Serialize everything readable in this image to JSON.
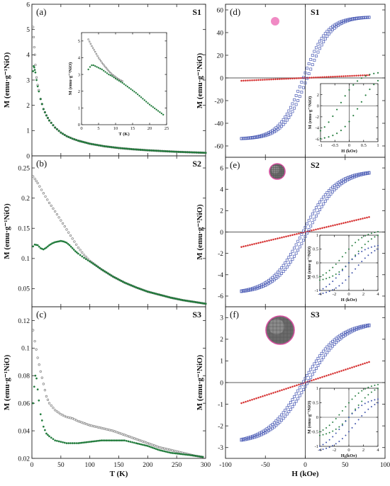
{
  "colors": {
    "fc": "#7f7f7f",
    "zfc": "#1f7a3a",
    "para": "#d42a2a",
    "loop": "#4a5bb5",
    "inset_loop_a": "#1f7a3a",
    "inset_loop_b": "#3b4fa8"
  },
  "chart_data": [
    {
      "id": "a",
      "type": "scatter",
      "panel_label": "(a)",
      "sample": "S1",
      "xlabel": "",
      "ylabel": "M (emu·g⁻¹NiO)",
      "xlim": [
        0,
        300
      ],
      "ylim": [
        0,
        6
      ],
      "yticks": [
        0,
        1,
        2,
        3,
        4,
        5,
        6
      ],
      "series": [
        {
          "role": "fc",
          "x": [
            2,
            3,
            4,
            5,
            6,
            8,
            10,
            12,
            15,
            20,
            25,
            30,
            40,
            50,
            60,
            70,
            80,
            100,
            125,
            150,
            175,
            200,
            225,
            250,
            275,
            300
          ],
          "y": [
            5.1,
            4.7,
            4.3,
            4.0,
            3.6,
            3.1,
            2.8,
            2.6,
            2.25,
            1.85,
            1.6,
            1.4,
            1.12,
            0.92,
            0.78,
            0.68,
            0.6,
            0.48,
            0.38,
            0.31,
            0.26,
            0.22,
            0.19,
            0.16,
            0.14,
            0.12
          ]
        },
        {
          "role": "zfc",
          "x": [
            2,
            3,
            4,
            5,
            6,
            8,
            10,
            12,
            15,
            20,
            25,
            30,
            40,
            50,
            60,
            70,
            80,
            100,
            125,
            150,
            175,
            200,
            225,
            250,
            275,
            300
          ],
          "y": [
            3.35,
            3.55,
            3.5,
            3.4,
            3.3,
            3.0,
            2.75,
            2.55,
            2.25,
            1.85,
            1.6,
            1.4,
            1.12,
            0.92,
            0.78,
            0.68,
            0.6,
            0.48,
            0.38,
            0.31,
            0.26,
            0.22,
            0.19,
            0.16,
            0.14,
            0.12
          ]
        }
      ],
      "inset": {
        "xlabel": "T (K)",
        "ylabel": "M (emu·g⁻¹NiO)",
        "xlim": [
          0,
          25
        ],
        "ylim": [
          0,
          5.5
        ],
        "xticks": [
          0,
          5,
          10,
          15,
          20,
          25
        ],
        "yticks": [
          0,
          1,
          2,
          3,
          4,
          5
        ],
        "series": [
          {
            "role": "fc",
            "x": [
              2,
              3,
              4,
              5,
              6,
              7,
              8,
              9,
              10,
              11,
              12
            ],
            "y": [
              5.1,
              4.7,
              4.35,
              4.0,
              3.7,
              3.45,
              3.2,
              3.0,
              2.85,
              2.7,
              2.6
            ]
          },
          {
            "role": "zfc",
            "x": [
              2,
              2.5,
              3,
              3.5,
              4,
              5,
              6,
              7,
              8,
              9,
              10,
              12,
              14,
              16,
              18,
              20,
              22,
              24
            ],
            "y": [
              3.3,
              3.45,
              3.55,
              3.55,
              3.5,
              3.4,
              3.3,
              3.15,
              3.0,
              2.9,
              2.75,
              2.5,
              2.2,
              1.9,
              1.55,
              1.2,
              0.9,
              0.6
            ]
          }
        ]
      }
    },
    {
      "id": "b",
      "type": "scatter",
      "panel_label": "(b)",
      "sample": "S2",
      "xlabel": "",
      "ylabel": "M (emu·g⁻¹NiO)",
      "xlim": [
        0,
        300
      ],
      "ylim": [
        0.02,
        0.27
      ],
      "yticks": [
        0.05,
        0.1,
        0.15,
        0.2,
        0.25
      ],
      "ytick_labels": [
        "0.05",
        "0.1",
        "0.15",
        "0.2",
        "0.25"
      ],
      "series": [
        {
          "role": "fc",
          "x": [
            2,
            5,
            10,
            20,
            30,
            40,
            50,
            60,
            70,
            80,
            90,
            100,
            120,
            140,
            160,
            180,
            200,
            220,
            240,
            260,
            280,
            300
          ],
          "y": [
            0.236,
            0.232,
            0.225,
            0.208,
            0.192,
            0.178,
            0.163,
            0.148,
            0.133,
            0.118,
            0.106,
            0.096,
            0.082,
            0.07,
            0.06,
            0.052,
            0.045,
            0.04,
            0.035,
            0.031,
            0.028,
            0.025
          ]
        },
        {
          "role": "zfc",
          "x": [
            2,
            5,
            10,
            15,
            20,
            25,
            30,
            35,
            40,
            45,
            50,
            55,
            60,
            65,
            70,
            75,
            80,
            90,
            100,
            120,
            140,
            160,
            180,
            200,
            220,
            240,
            260,
            280,
            300
          ],
          "y": [
            0.12,
            0.123,
            0.122,
            0.117,
            0.115,
            0.118,
            0.122,
            0.125,
            0.127,
            0.128,
            0.129,
            0.128,
            0.126,
            0.122,
            0.117,
            0.112,
            0.108,
            0.101,
            0.095,
            0.082,
            0.07,
            0.06,
            0.052,
            0.045,
            0.04,
            0.035,
            0.031,
            0.028,
            0.025
          ]
        }
      ]
    },
    {
      "id": "c",
      "type": "scatter",
      "panel_label": "(c)",
      "sample": "S3",
      "xlabel": "T (K)",
      "ylabel": "M (emu·g⁻¹NiO)",
      "xlim": [
        0,
        300
      ],
      "ylim": [
        0.02,
        0.13
      ],
      "xticks": [
        0,
        50,
        100,
        150,
        200,
        250,
        300
      ],
      "yticks": [
        0.02,
        0.04,
        0.06,
        0.08,
        0.1,
        0.12
      ],
      "ytick_labels": [
        "0.02",
        "0.04",
        "0.06",
        "0.08",
        "0.1",
        "0.12"
      ],
      "series": [
        {
          "role": "fc",
          "x": [
            2,
            5,
            10,
            15,
            20,
            25,
            30,
            40,
            50,
            60,
            70,
            80,
            100,
            120,
            140,
            160,
            180,
            200,
            220,
            240,
            260,
            280,
            295
          ],
          "y": [
            0.113,
            0.105,
            0.093,
            0.083,
            0.074,
            0.065,
            0.06,
            0.055,
            0.052,
            0.05,
            0.049,
            0.047,
            0.044,
            0.042,
            0.04,
            0.037,
            0.034,
            0.031,
            0.028,
            0.026,
            0.024,
            0.022,
            0.021
          ]
        },
        {
          "role": "zfc",
          "x": [
            2,
            4,
            6,
            8,
            10,
            12,
            15,
            20,
            25,
            30,
            40,
            50,
            60,
            70,
            80,
            100,
            120,
            140,
            160,
            170,
            180,
            200,
            220,
            240,
            260,
            280,
            295
          ],
          "y": [
            0.06,
            0.072,
            0.08,
            0.078,
            0.07,
            0.062,
            0.052,
            0.043,
            0.038,
            0.036,
            0.033,
            0.032,
            0.031,
            0.031,
            0.031,
            0.032,
            0.033,
            0.033,
            0.033,
            0.032,
            0.031,
            0.029,
            0.026,
            0.024,
            0.023,
            0.022,
            0.021
          ]
        }
      ]
    },
    {
      "id": "d",
      "type": "scatter",
      "panel_label": "(d)",
      "sample": "S1",
      "xlabel": "",
      "ylabel": "M (emu·g⁻¹NiO)",
      "xlim": [
        -100,
        100
      ],
      "ylim": [
        -70,
        65
      ],
      "yticks": [
        -60,
        -40,
        -20,
        0,
        20,
        40,
        60
      ],
      "loop": {
        "Hmax": 80,
        "Ms": 54,
        "H0": 30,
        "Hc": 2.5
      },
      "para": {
        "H": [
          -80,
          80
        ],
        "M": [
          -2.5,
          2.5
        ]
      },
      "particle": {
        "kind": "solid",
        "color": "#f08ac4"
      },
      "inset": {
        "xlabel": "H (kOe)",
        "ylabel": "M (emu·g⁻¹NiO)",
        "xlim": [
          -1,
          1
        ],
        "ylim": [
          -6.5,
          4
        ],
        "xticks": [
          -1,
          -0.5,
          0,
          0.5,
          1
        ],
        "xtick_labels": [
          "-1",
          "-0.5",
          "0",
          "0.5",
          "1"
        ],
        "yticks": [
          -6,
          -4,
          -2,
          0,
          2
        ],
        "loop": {
          "Hmax": 1,
          "Ms": 6.2,
          "H0": 0.7,
          "Hc": 0.35
        }
      }
    },
    {
      "id": "e",
      "type": "scatter",
      "panel_label": "(e)",
      "sample": "S2",
      "xlabel": "",
      "ylabel": "M (emu·g⁻¹NiO)",
      "xlim": [
        -100,
        100
      ],
      "ylim": [
        -7,
        7
      ],
      "yticks": [
        -6,
        -4,
        -2,
        0,
        2,
        4,
        6
      ],
      "loop": {
        "Hmax": 80,
        "Ms": 5.75,
        "H0": 40,
        "Hc": 3
      },
      "para": {
        "H": [
          -80,
          80
        ],
        "M": [
          -1.4,
          1.4
        ]
      },
      "particle": {
        "kind": "core-shell-small",
        "color": "#d64fa0"
      },
      "inset": {
        "xlabel": "H (kOe)",
        "ylabel": "M (emu·g⁻¹NiO)",
        "xlim": [
          -4,
          4
        ],
        "ylim": [
          -1,
          1
        ],
        "xticks": [
          -4,
          -2,
          0,
          2,
          4
        ],
        "yticks": [
          -1,
          -0.5,
          0,
          0.5,
          1
        ],
        "ytick_labels": [
          "-1",
          "-0.5",
          "0",
          "0.5",
          "1"
        ],
        "loops": [
          {
            "role": "a",
            "Hmax": 4,
            "Ms": 0.95,
            "H0": 3,
            "Hc": 0.8,
            "shift": 0.25
          },
          {
            "role": "b",
            "Hmax": 4,
            "Ms": 0.95,
            "H0": 3,
            "Hc": 0.8,
            "shift": -0.25
          }
        ]
      }
    },
    {
      "id": "f",
      "type": "scatter",
      "panel_label": "(f)",
      "sample": "S3",
      "xlabel": "H (kOe)",
      "ylabel": "M (emu·g⁻¹NiO)",
      "xlim": [
        -100,
        100
      ],
      "ylim": [
        -3.5,
        3.5
      ],
      "xticks": [
        -100,
        -50,
        0,
        50,
        100
      ],
      "yticks": [
        -3,
        -2,
        -1,
        0,
        1,
        2,
        3
      ],
      "loop": {
        "Hmax": 80,
        "Ms": 2.8,
        "H0": 45,
        "Hc": 3
      },
      "para": {
        "H": [
          -80,
          80
        ],
        "M": [
          -0.95,
          0.95
        ]
      },
      "particle": {
        "kind": "core-shell-large",
        "color": "#d64fa0"
      },
      "inset": {
        "xlabel": "H (kOe)",
        "ylabel": "M (emu·g⁻¹NiO)",
        "xlim": [
          -4,
          4
        ],
        "ylim": [
          -1,
          1
        ],
        "xticks": [
          -4,
          -2,
          0,
          2,
          4
        ],
        "yticks": [
          -1,
          -0.5,
          0,
          0.5,
          1
        ],
        "ytick_labels": [
          "-1",
          "-0.5",
          "0",
          "0.5",
          "1"
        ],
        "loops": [
          {
            "role": "a",
            "Hmax": 4,
            "Ms": 0.95,
            "H0": 3,
            "Hc": 0.8,
            "shift": 0.25
          },
          {
            "role": "b",
            "Hmax": 4,
            "Ms": 0.95,
            "H0": 3,
            "Hc": 0.8,
            "shift": -0.25
          }
        ]
      }
    }
  ]
}
